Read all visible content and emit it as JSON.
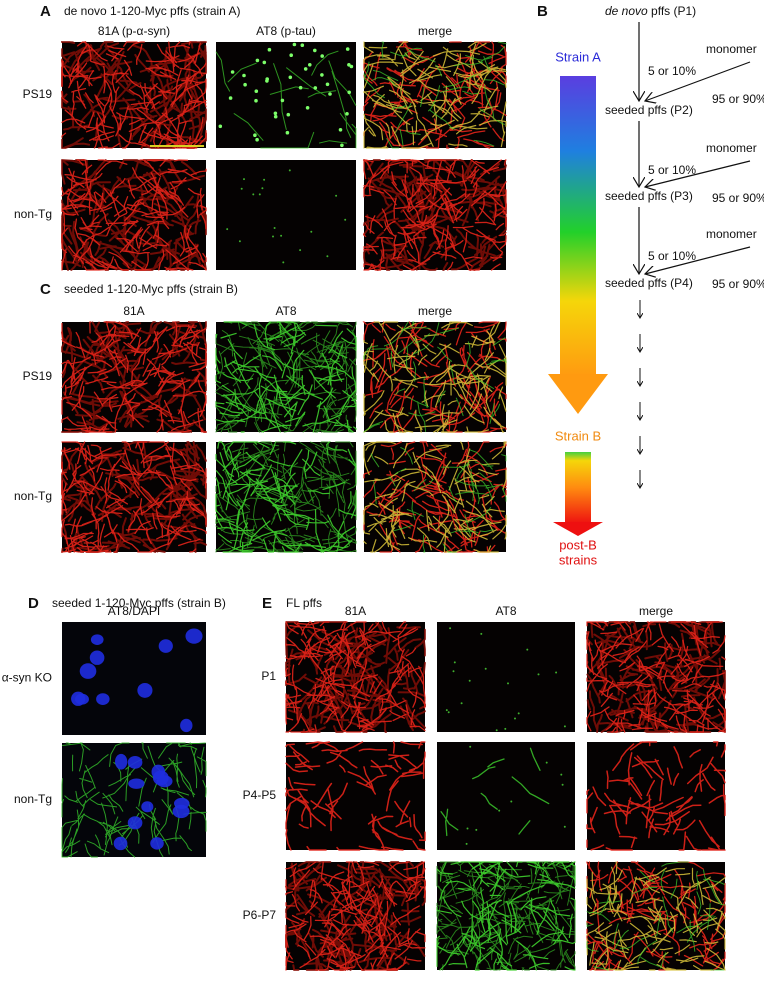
{
  "panel_a": {
    "label": "A",
    "title": "de novo 1-120-Myc pffs (strain A)",
    "columns": [
      "81A (p-α-syn)",
      "AT8 (p-tau)",
      "merge"
    ],
    "rows": [
      "PS19",
      "non-Tg"
    ]
  },
  "panel_b": {
    "label": "B",
    "strain_a": "Strain A",
    "strain_b": "Strain B",
    "post_b": [
      "post-B",
      "strains"
    ],
    "steps": [
      {
        "italic": "de novo",
        "label": "pffs (P1)"
      },
      {
        "label": "seeded pffs (P2)"
      },
      {
        "label": "seeded pffs (P3)"
      },
      {
        "label": "seeded pffs (P4)"
      }
    ],
    "transitions": [
      {
        "seed": "5 or 10%",
        "monomer": "monomer",
        "fraction": "95 or 90%"
      },
      {
        "seed": "5 or 10%",
        "monomer": "monomer",
        "fraction": "95 or 90%"
      },
      {
        "seed": "5 or 10%",
        "monomer": "monomer",
        "fraction": "95 or 90%"
      }
    ]
  },
  "panel_c": {
    "label": "C",
    "title": "seeded 1-120-Myc pffs (strain B)",
    "columns": [
      "81A",
      "AT8",
      "merge"
    ],
    "rows": [
      "PS19",
      "non-Tg"
    ]
  },
  "panel_d": {
    "label": "D",
    "title": "seeded 1-120-Myc pffs (strain B)",
    "columns": [
      "AT8/DAPI"
    ],
    "rows": [
      "α-syn KO",
      "non-Tg"
    ]
  },
  "panel_e": {
    "label": "E",
    "title": "FL pffs",
    "columns": [
      "81A",
      "AT8",
      "merge"
    ],
    "rows": [
      "P1",
      "P4-P5",
      "P6-P7"
    ]
  }
}
